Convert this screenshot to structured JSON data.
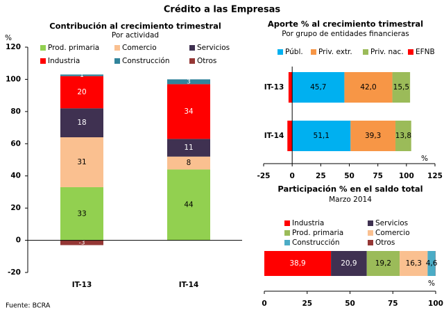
{
  "title": "Crédito a las Empresas",
  "source": "Fuente: BCRA",
  "chart_data": [
    {
      "type": "stacked-bar",
      "title": "Contribución al crecimiento trimestral",
      "subtitle": "Por actividad",
      "y_label": "%",
      "categories": [
        "IT-13",
        "IT-14"
      ],
      "series": [
        {
          "name": "Prod. primaria",
          "color": "#92d050",
          "values": [
            33,
            44
          ]
        },
        {
          "name": "Comercio",
          "color": "#fac090",
          "values": [
            31,
            8
          ]
        },
        {
          "name": "Servicios",
          "color": "#3f3151",
          "values": [
            18,
            11
          ]
        },
        {
          "name": "Industria",
          "color": "#ff0000",
          "values": [
            20,
            34
          ]
        },
        {
          "name": "Construcción",
          "color": "#31849b",
          "values": [
            1,
            3
          ]
        },
        {
          "name": "Otros",
          "color": "#953735",
          "values": [
            -3,
            null
          ]
        }
      ],
      "ylim": [
        -20,
        120
      ],
      "yticks": [
        -20,
        0,
        20,
        40,
        60,
        80,
        100,
        120
      ]
    },
    {
      "type": "stacked-hbar",
      "title": "Aporte % al crecimiento trimestral",
      "subtitle": "Por grupo de entidades financieras",
      "x_label": "%",
      "categories": [
        "IT-13",
        "IT-14"
      ],
      "series": [
        {
          "name": "Públ.",
          "color": "#00b0f0",
          "values": [
            45.7,
            51.1
          ],
          "value_labels": [
            "45,7",
            "51,1"
          ]
        },
        {
          "name": "Priv. extr.",
          "color": "#f79646",
          "values": [
            42.0,
            39.3
          ],
          "value_labels": [
            "42,0",
            "39,3"
          ]
        },
        {
          "name": "Priv. nac.",
          "color": "#9bbb59",
          "values": [
            15.5,
            13.8
          ],
          "value_labels": [
            "15,5",
            "13,8"
          ]
        },
        {
          "name": "EFNB",
          "color": "#ff0000",
          "values": [
            -3.2,
            -4.2
          ],
          "value_labels": [
            null,
            null
          ]
        }
      ],
      "xlim": [
        -25,
        125
      ],
      "xticks": [
        -25,
        0,
        25,
        50,
        75,
        100,
        125
      ]
    },
    {
      "type": "stacked-hbar",
      "title": "Participación % en el saldo total",
      "subtitle": "Marzo 2014",
      "x_label": "%",
      "categories": [
        null
      ],
      "series": [
        {
          "name": "Industria",
          "color": "#ff0000",
          "values": [
            38.9
          ],
          "value_labels": [
            "38,9"
          ]
        },
        {
          "name": "Servicios",
          "color": "#3f3151",
          "values": [
            20.9
          ],
          "value_labels": [
            "20,9"
          ]
        },
        {
          "name": "Prod. primaria",
          "color": "#9bbb59",
          "values": [
            19.2
          ],
          "value_labels": [
            "19,2"
          ]
        },
        {
          "name": "Comercio",
          "color": "#fac090",
          "values": [
            16.3
          ],
          "value_labels": [
            "16,3"
          ]
        },
        {
          "name": "Construcción",
          "color": "#4bacc6",
          "values": [
            4.6
          ],
          "value_labels": [
            "4,6"
          ]
        },
        {
          "name": "Otros",
          "color": "#953735",
          "values": [
            0.1
          ],
          "value_labels": [
            null
          ]
        }
      ],
      "xlim": [
        0,
        100
      ],
      "xticks": [
        0,
        25,
        50,
        75,
        100
      ]
    }
  ]
}
